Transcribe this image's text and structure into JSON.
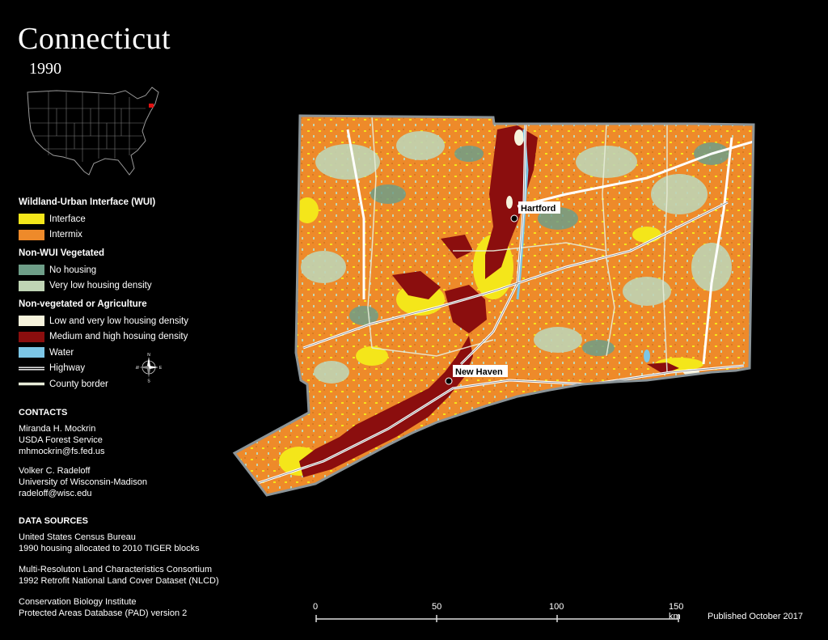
{
  "header": {
    "title": "Connecticut",
    "year": "1990"
  },
  "colors": {
    "interface": "#f4e61a",
    "intermix": "#ee8a2a",
    "no_housing": "#6e9e88",
    "very_low": "#bfd4b4",
    "nonveg_low": "#f6f3dc",
    "nonveg_high": "#8b0e0e",
    "water": "#7cc6e6",
    "highway": "#ffffff",
    "county": "#e7ecd8"
  },
  "legend": {
    "wui_title": "Wildland-Urban Interface (WUI)",
    "wui_items": [
      {
        "label": "Interface",
        "icon": "interface-swatch"
      },
      {
        "label": "Intermix",
        "icon": "intermix-swatch"
      }
    ],
    "nonwui_title": "Non-WUI Vegetated",
    "nonwui_items": [
      {
        "label": "No housing",
        "icon": "no-housing-swatch"
      },
      {
        "label": "Very low housing density",
        "icon": "very-low-swatch"
      }
    ],
    "nonveg_title": "Non-vegetated or Agriculture",
    "nonveg_items": [
      {
        "label": "Low and very low housing density",
        "icon": "low-density-swatch"
      },
      {
        "label": "Medium and high hosuing density",
        "icon": "high-density-swatch"
      },
      {
        "label": "Water",
        "icon": "water-swatch"
      },
      {
        "label": "Highway",
        "icon": "highway-line"
      },
      {
        "label": "County border",
        "icon": "county-line"
      }
    ]
  },
  "compass": {
    "n": "N",
    "s": "S",
    "e": "E",
    "w": "W"
  },
  "contacts": {
    "title": "CONTACTS",
    "people": [
      {
        "name": "Miranda H. Mockrin",
        "org": "USDA Forest Service",
        "email": "mhmockrin@fs.fed.us"
      },
      {
        "name": "Volker C. Radeloff",
        "org": "University of Wisconsin-Madison",
        "email": "radeloff@wisc.edu"
      }
    ]
  },
  "data_sources": {
    "title": "DATA SOURCES",
    "items": [
      {
        "line1": "United States Census Bureau",
        "line2": "1990 housing allocated to 2010 TIGER blocks"
      },
      {
        "line1": "Multi-Resoluton Land Characteristics Consortium",
        "line2": "1992 Retrofit National Land Cover Dataset (NLCD)"
      },
      {
        "line1": "Conservation Biology Institute",
        "line2": "Protected Areas Database (PAD) version 2"
      }
    ]
  },
  "map": {
    "cities": [
      "Hartford",
      "New Haven"
    ]
  },
  "scale": {
    "ticks": [
      "0",
      "50",
      "100",
      "150 km"
    ]
  },
  "footer": {
    "published": "Published October 2017"
  }
}
